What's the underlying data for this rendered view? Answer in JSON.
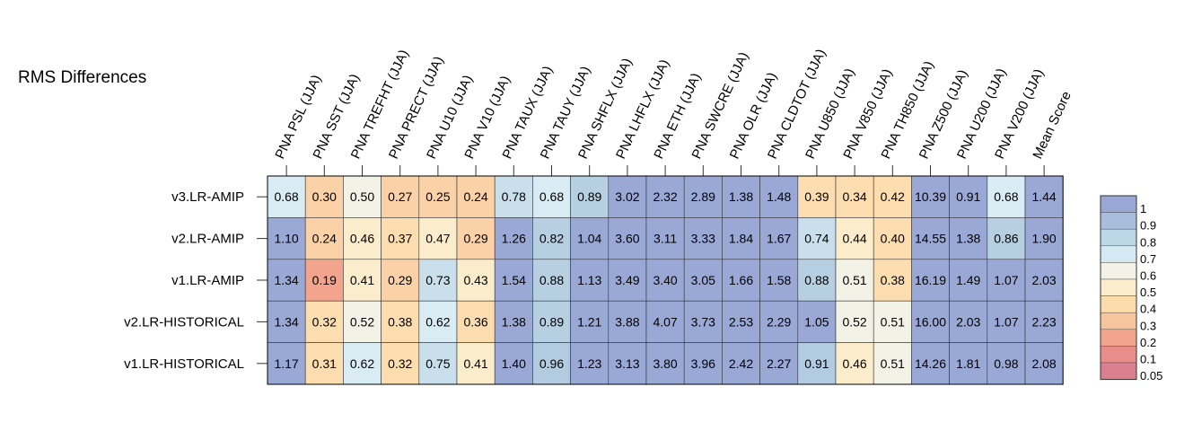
{
  "chart_data": {
    "type": "heatmap",
    "title": "RMS Differences",
    "columns": [
      "PNA PSL (JJA)",
      "PNA SST (JJA)",
      "PNA TREFHT (JJA)",
      "PNA PRECT (JJA)",
      "PNA U10 (JJA)",
      "PNA V10 (JJA)",
      "PNA TAUX (JJA)",
      "PNA TAUY (JJA)",
      "PNA SHFLX (JJA)",
      "PNA LHFLX (JJA)",
      "PNA ETH (JJA)",
      "PNA SWCRE (JJA)",
      "PNA OLR (JJA)",
      "PNA CLDTOT (JJA)",
      "PNA U850 (JJA)",
      "PNA V850 (JJA)",
      "PNA TH850 (JJA)",
      "PNA Z500 (JJA)",
      "PNA U200 (JJA)",
      "PNA V200 (JJA)",
      "Mean Score"
    ],
    "rows": [
      "v3.LR-AMIP",
      "v2.LR-AMIP",
      "v1.LR-AMIP",
      "v2.LR-HISTORICAL",
      "v1.LR-HISTORICAL"
    ],
    "values": [
      [
        "0.68",
        "0.30",
        "0.50",
        "0.27",
        "0.25",
        "0.24",
        "0.78",
        "0.68",
        "0.89",
        "3.02",
        "2.32",
        "2.89",
        "1.38",
        "1.48",
        "0.39",
        "0.34",
        "0.42",
        "10.39",
        "0.91",
        "0.68",
        "1.44"
      ],
      [
        "1.10",
        "0.24",
        "0.46",
        "0.37",
        "0.47",
        "0.29",
        "1.26",
        "0.82",
        "1.04",
        "3.60",
        "3.11",
        "3.33",
        "1.84",
        "1.67",
        "0.74",
        "0.44",
        "0.40",
        "14.55",
        "1.38",
        "0.86",
        "1.90"
      ],
      [
        "1.34",
        "0.19",
        "0.41",
        "0.29",
        "0.73",
        "0.43",
        "1.54",
        "0.88",
        "1.13",
        "3.49",
        "3.40",
        "3.05",
        "1.66",
        "1.58",
        "0.88",
        "0.51",
        "0.38",
        "16.19",
        "1.49",
        "1.07",
        "2.03"
      ],
      [
        "1.34",
        "0.32",
        "0.52",
        "0.38",
        "0.62",
        "0.36",
        "1.38",
        "0.89",
        "1.21",
        "3.88",
        "4.07",
        "3.73",
        "2.53",
        "2.29",
        "1.05",
        "0.52",
        "0.51",
        "16.00",
        "2.03",
        "1.07",
        "2.23"
      ],
      [
        "1.17",
        "0.31",
        "0.62",
        "0.32",
        "0.75",
        "0.41",
        "1.40",
        "0.96",
        "1.23",
        "3.13",
        "3.80",
        "3.96",
        "2.42",
        "2.27",
        "0.91",
        "0.46",
        "0.51",
        "14.26",
        "1.81",
        "0.98",
        "2.08"
      ]
    ],
    "cell_levels": [
      [
        0.7,
        0.3,
        0.6,
        0.3,
        0.3,
        0.3,
        0.8,
        0.7,
        0.9,
        1,
        1,
        1,
        1,
        1,
        0.4,
        0.4,
        0.4,
        1,
        1,
        0.7,
        1
      ],
      [
        1,
        0.3,
        0.5,
        0.4,
        0.5,
        0.3,
        1,
        0.9,
        1,
        1,
        1,
        1,
        1,
        1,
        0.8,
        0.5,
        0.4,
        1,
        1,
        0.9,
        1
      ],
      [
        1,
        0.2,
        0.5,
        0.3,
        0.8,
        0.5,
        1,
        0.9,
        1,
        1,
        1,
        1,
        1,
        1,
        0.9,
        0.6,
        0.4,
        1,
        1,
        1,
        1
      ],
      [
        1,
        0.4,
        0.6,
        0.4,
        0.7,
        0.4,
        1,
        0.9,
        1,
        1,
        1,
        1,
        1,
        1,
        1,
        0.6,
        0.6,
        1,
        1,
        1,
        1
      ],
      [
        1,
        0.4,
        0.7,
        0.4,
        0.8,
        0.5,
        1,
        0.96,
        1,
        1,
        1,
        1,
        1,
        1,
        0.96,
        0.5,
        0.6,
        1,
        1,
        1,
        1
      ]
    ],
    "legend": {
      "labels": [
        "1",
        "0.9",
        "0.8",
        "0.7",
        "0.6",
        "0.5",
        "0.4",
        "0.3",
        "0.2",
        "0.1",
        "0.05"
      ],
      "colors": [
        "#9aa8d6",
        "#a9bedc",
        "#bcd7e6",
        "#d4eaf2",
        "#f4f2e6",
        "#fbeccb",
        "#fcdcab",
        "#f7c4a0",
        "#f2a48c",
        "#e98d8b",
        "#d97f8e"
      ]
    },
    "level_colors": {
      "1": "#9aa8d6",
      "0.96": "#b3cbe1",
      "0.9": "#b6d0e2",
      "0.8": "#c9e0ec",
      "0.7": "#d9ebf3",
      "0.6": "#f3f2e7",
      "0.5": "#fbedcc",
      "0.4": "#fcddb0",
      "0.3": "#fbd2a8",
      "0.2": "#f2a48c"
    }
  }
}
